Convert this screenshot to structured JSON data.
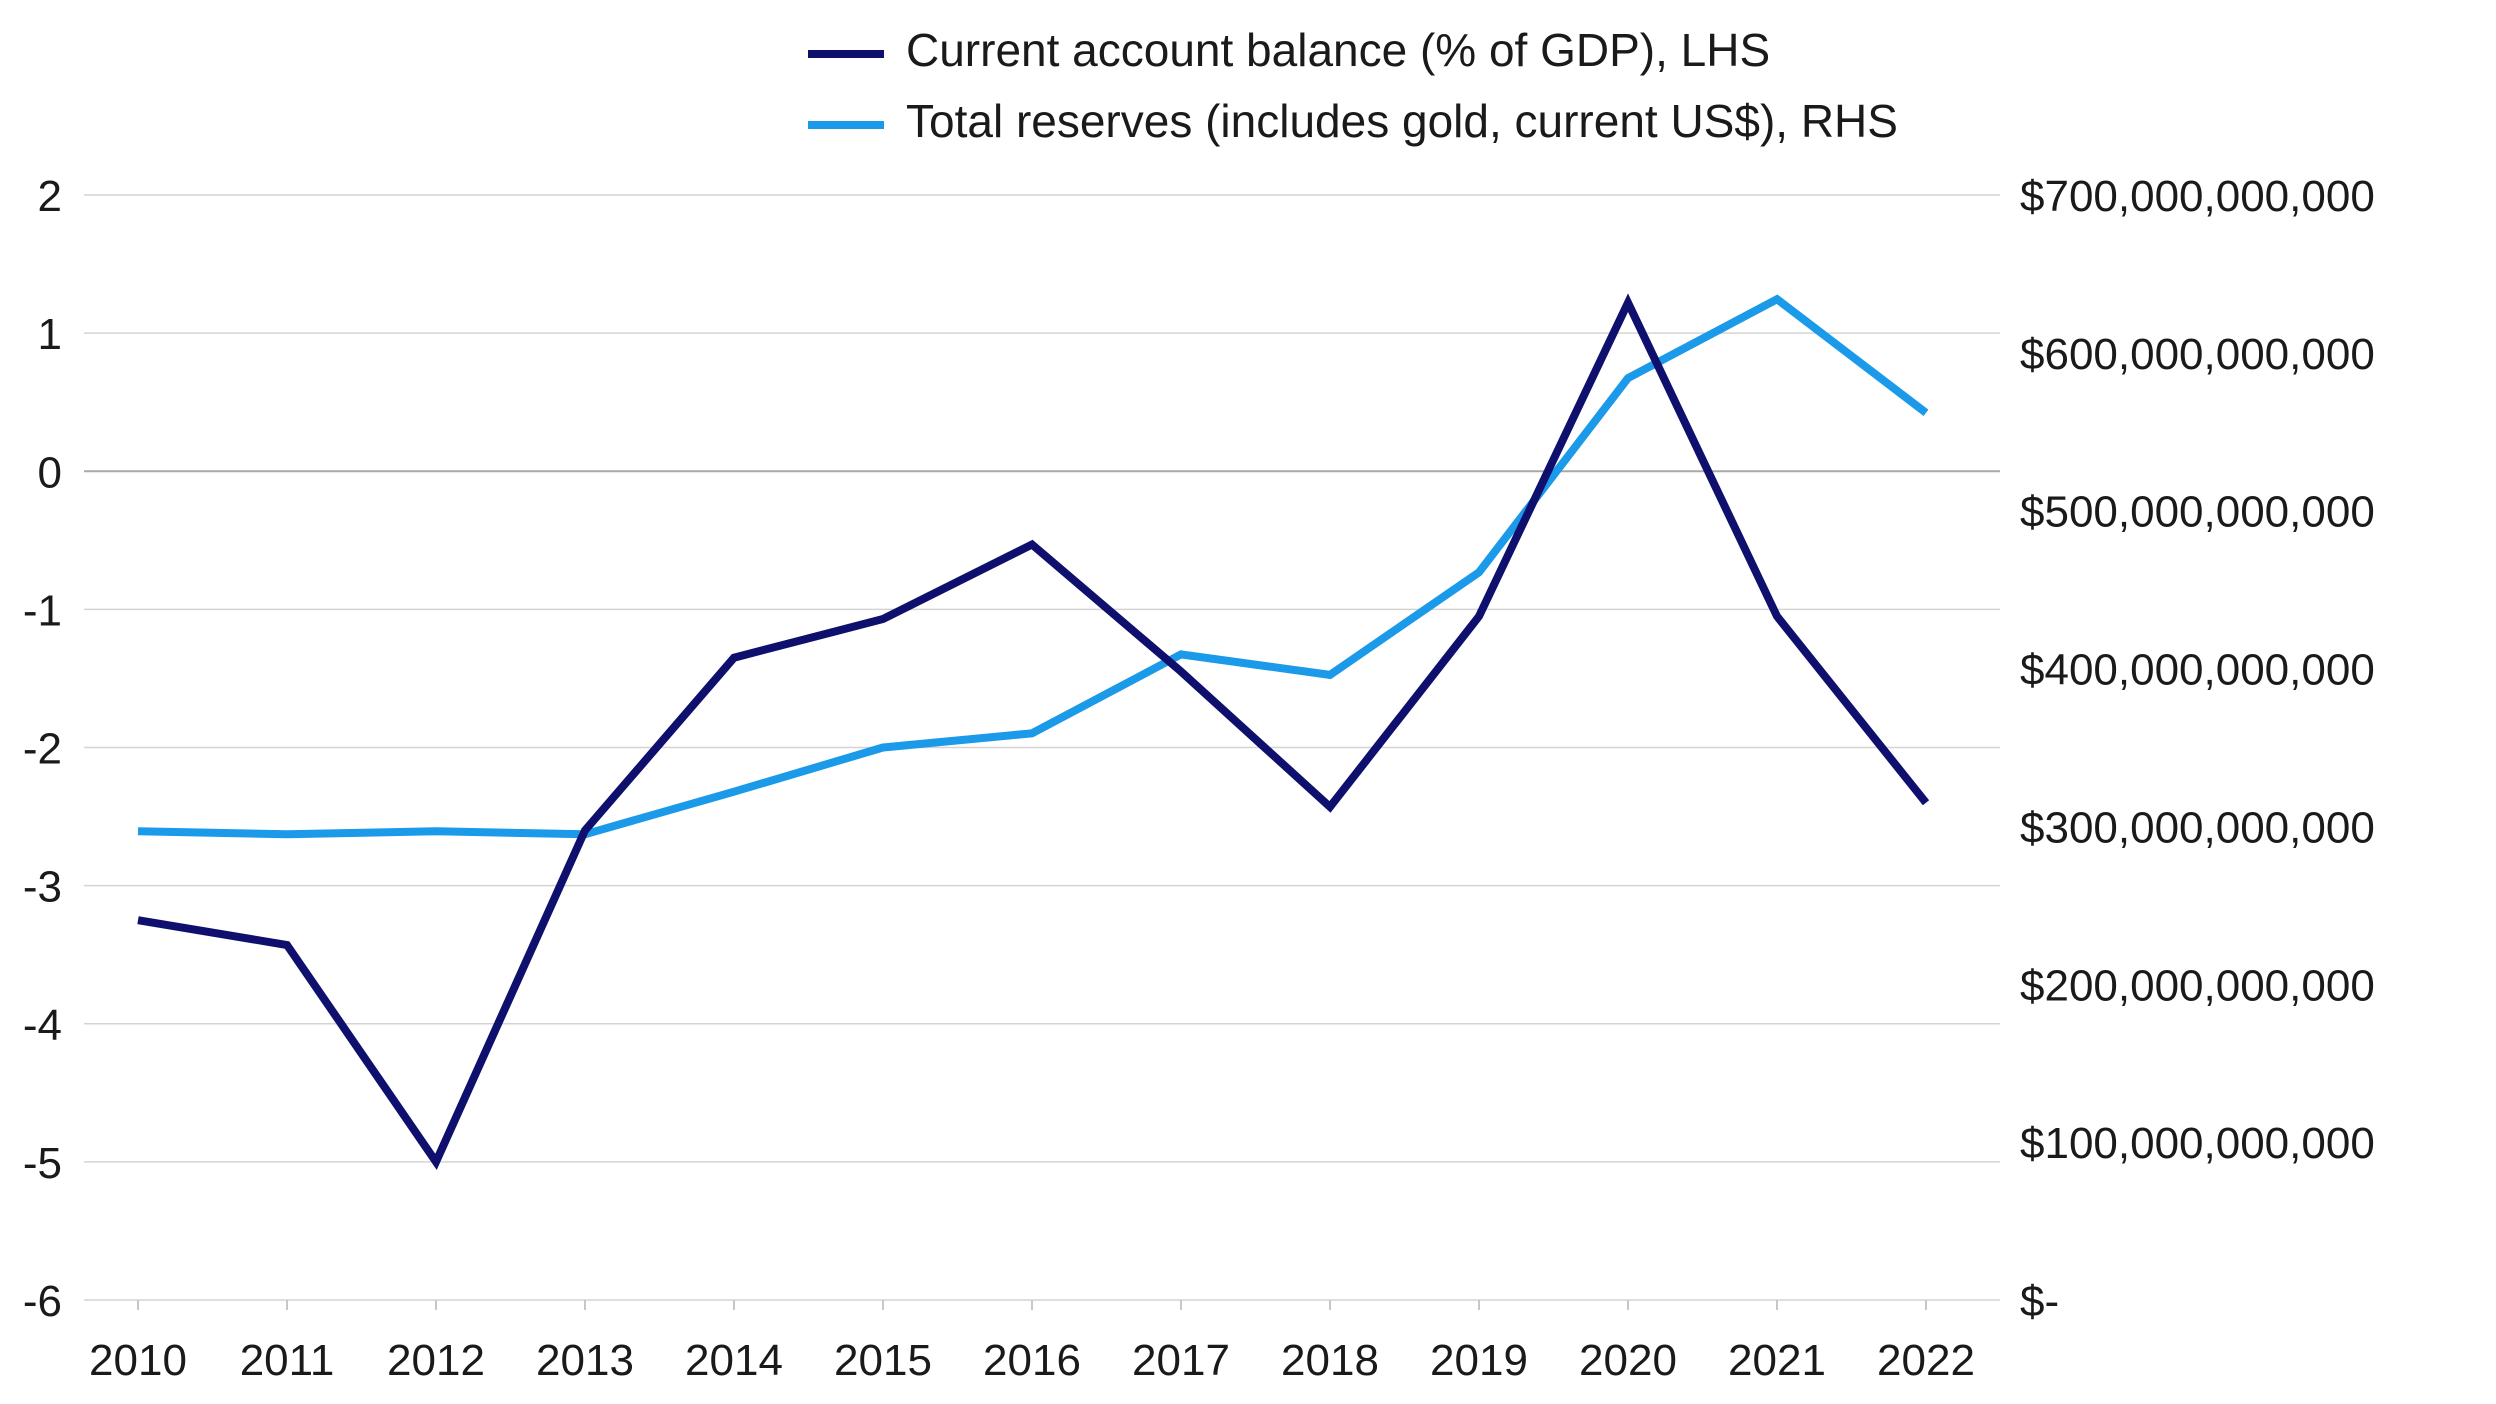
{
  "chart_data": {
    "type": "line",
    "title": "",
    "xlabel": "",
    "ylabel_left": "",
    "ylabel_right": "",
    "categories": [
      "2010",
      "2011",
      "2012",
      "2013",
      "2014",
      "2015",
      "2016",
      "2017",
      "2018",
      "2019",
      "2020",
      "2021",
      "2022"
    ],
    "left_axis": {
      "ylim": [
        -6,
        2
      ],
      "ticks": [
        2,
        1,
        0,
        -1,
        -2,
        -3,
        -4,
        -5,
        -6
      ],
      "tick_labels": [
        "2",
        "1",
        "0",
        "-1",
        "-2",
        "-3",
        "-4",
        "-5",
        "-6"
      ]
    },
    "right_axis": {
      "ylim": [
        0,
        700000000000
      ],
      "ticks": [
        700000000000,
        600000000000,
        500000000000,
        400000000000,
        300000000000,
        200000000000,
        100000000000,
        0
      ],
      "tick_labels": [
        "$700,000,000,000",
        "$600,000,000,000",
        "$500,000,000,000",
        "$400,000,000,000",
        "$300,000,000,000",
        "$200,000,000,000",
        "$100,000,000,000",
        "$-"
      ]
    },
    "grid": true,
    "legend": "top-center",
    "series": [
      {
        "name": "Current account balance (% of GDP), LHS",
        "axis": "left",
        "color": "#0f0f6e",
        "values": [
          -3.25,
          -3.43,
          -5.0,
          -2.6,
          -1.35,
          -1.07,
          -0.53,
          -1.45,
          -2.43,
          -1.05,
          1.22,
          -1.05,
          -2.4
        ]
      },
      {
        "name": "Total reserves (includes gold, current US$), RHS",
        "axis": "right",
        "color": "#1a9ae8",
        "values": [
          297000000000,
          295000000000,
          297000000000,
          295000000000,
          322000000000,
          350000000000,
          359000000000,
          409000000000,
          396000000000,
          461000000000,
          584000000000,
          634000000000,
          562000000000
        ]
      }
    ]
  }
}
